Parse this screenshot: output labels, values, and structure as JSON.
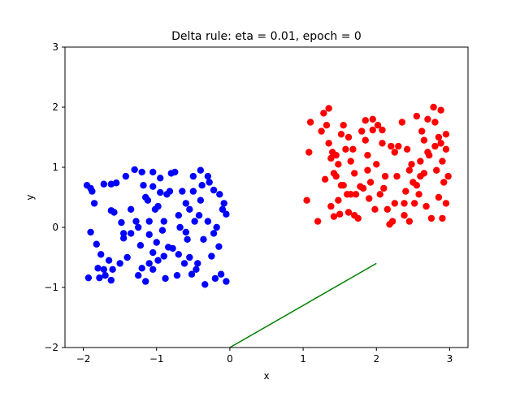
{
  "chart_data": {
    "type": "scatter",
    "title": "Delta rule: eta = 0.01, epoch = 0",
    "xlabel": "x",
    "ylabel": "y",
    "xlim": [
      -2.25,
      3.25
    ],
    "ylim": [
      -2,
      3
    ],
    "xticks": [
      -2,
      -1,
      0,
      1,
      2,
      3
    ],
    "yticks": [
      -2,
      -1,
      0,
      1,
      2,
      3
    ],
    "grid": false,
    "legend": "none",
    "series": [
      {
        "color": "#0000ff",
        "points": [
          [
            -1.95,
            0.7
          ],
          [
            -1.9,
            0.65
          ],
          [
            -1.88,
            0.6
          ],
          [
            -1.85,
            0.4
          ],
          [
            -1.9,
            -0.08
          ],
          [
            -1.93,
            -0.84
          ],
          [
            -1.82,
            -0.28
          ],
          [
            -1.8,
            -0.68
          ],
          [
            -1.78,
            -0.84
          ],
          [
            -1.76,
            -0.45
          ],
          [
            -1.72,
            -0.7
          ],
          [
            -1.7,
            -0.8
          ],
          [
            -1.72,
            0.72
          ],
          [
            -1.62,
            0.72
          ],
          [
            -1.62,
            0.28
          ],
          [
            -1.58,
            0.25
          ],
          [
            -1.6,
            -0.7
          ],
          [
            -1.62,
            -0.88
          ],
          [
            -1.55,
            0.74
          ],
          [
            -1.5,
            -0.6
          ],
          [
            -1.45,
            -0.1
          ],
          [
            -1.45,
            -0.18
          ],
          [
            -1.42,
            0.85
          ],
          [
            -1.4,
            -0.5
          ],
          [
            -1.35,
            -0.1
          ],
          [
            -1.3,
            0.96
          ],
          [
            -1.28,
            0.1
          ],
          [
            -1.25,
            0.0
          ],
          [
            -1.22,
            -0.3
          ],
          [
            -1.2,
            -0.68
          ],
          [
            -1.2,
            0.92
          ],
          [
            -1.18,
            0.7
          ],
          [
            -1.15,
            -0.9
          ],
          [
            -1.15,
            0.5
          ],
          [
            -1.12,
            0.45
          ],
          [
            -1.1,
            -0.6
          ],
          [
            -1.1,
            0.1
          ],
          [
            -1.05,
            0.92
          ],
          [
            -1.05,
            0.68
          ],
          [
            -1.05,
            -0.42
          ],
          [
            -1.05,
            -0.7
          ],
          [
            -1.02,
            0.3
          ],
          [
            -1.0,
            -0.25
          ],
          [
            -0.98,
            0.35
          ],
          [
            -0.98,
            -0.55
          ],
          [
            -0.95,
            0.58
          ],
          [
            -0.92,
            -0.05
          ],
          [
            -0.9,
            -0.48
          ],
          [
            -0.88,
            -0.85
          ],
          [
            -0.86,
            0.55
          ],
          [
            -0.84,
            -0.33
          ],
          [
            -0.82,
            0.6
          ],
          [
            -0.8,
            0.9
          ],
          [
            -0.78,
            -0.35
          ],
          [
            -0.75,
            0.92
          ],
          [
            -0.72,
            -0.8
          ],
          [
            -0.7,
            0.2
          ],
          [
            -0.68,
            0.0
          ],
          [
            -0.65,
            0.6
          ],
          [
            -0.62,
            -0.6
          ],
          [
            -0.6,
            -0.08
          ],
          [
            -0.58,
            -0.2
          ],
          [
            -0.55,
            0.3
          ],
          [
            -0.52,
            -0.78
          ],
          [
            -0.5,
            0.6
          ],
          [
            -0.5,
            0.85
          ],
          [
            -0.48,
            0.1
          ],
          [
            -0.46,
            -0.7
          ],
          [
            -0.44,
            -0.6
          ],
          [
            -0.42,
            0.2
          ],
          [
            -0.4,
            0.95
          ],
          [
            -0.4,
            0.45
          ],
          [
            -0.36,
            -0.2
          ],
          [
            -0.34,
            -0.95
          ],
          [
            -0.3,
            0.85
          ],
          [
            -0.28,
            0.75
          ],
          [
            -0.25,
            -0.48
          ],
          [
            -0.22,
            -0.1
          ],
          [
            -0.2,
            -0.85
          ],
          [
            -0.18,
            0.0
          ],
          [
            -0.15,
            -0.32
          ],
          [
            -0.14,
            0.55
          ],
          [
            -0.12,
            -0.78
          ],
          [
            -0.1,
            0.3
          ],
          [
            -0.08,
            0.4
          ],
          [
            -0.05,
            0.22
          ],
          [
            -0.05,
            -0.9
          ],
          [
            -0.38,
            0.7
          ],
          [
            -0.6,
            0.4
          ],
          [
            -1.35,
            0.3
          ],
          [
            -1.25,
            -0.8
          ],
          [
            -0.9,
            0.1
          ],
          [
            -0.7,
            -0.45
          ],
          [
            -0.3,
            0.1
          ],
          [
            -0.22,
            0.62
          ],
          [
            -1.65,
            -0.55
          ],
          [
            -1.48,
            0.08
          ],
          [
            -0.95,
            0.82
          ],
          [
            -0.55,
            -0.5
          ],
          [
            -1.1,
            -0.12
          ]
        ]
      },
      {
        "color": "#ff0000",
        "points": [
          [
            1.05,
            0.45
          ],
          [
            1.08,
            1.25
          ],
          [
            1.1,
            1.75
          ],
          [
            1.2,
            0.1
          ],
          [
            1.25,
            1.6
          ],
          [
            1.28,
            1.9
          ],
          [
            1.3,
            0.8
          ],
          [
            1.32,
            1.7
          ],
          [
            1.35,
            1.98
          ],
          [
            1.35,
            1.4
          ],
          [
            1.38,
            1.15
          ],
          [
            1.38,
            0.35
          ],
          [
            1.4,
            1.25
          ],
          [
            1.42,
            0.9
          ],
          [
            1.42,
            0.18
          ],
          [
            1.45,
            0.85
          ],
          [
            1.45,
            1.2
          ],
          [
            1.48,
            0.45
          ],
          [
            1.5,
            0.22
          ],
          [
            1.52,
            1.55
          ],
          [
            1.55,
            0.7
          ],
          [
            1.55,
            1.7
          ],
          [
            1.58,
            1.3
          ],
          [
            1.6,
            0.55
          ],
          [
            1.62,
            0.25
          ],
          [
            1.65,
            1.1
          ],
          [
            1.65,
            0.55
          ],
          [
            1.68,
            1.3
          ],
          [
            1.7,
            0.9
          ],
          [
            1.72,
            0.55
          ],
          [
            1.75,
            0.15
          ],
          [
            1.78,
            0.68
          ],
          [
            1.8,
            1.6
          ],
          [
            1.82,
            0.65
          ],
          [
            1.85,
            1.45
          ],
          [
            1.85,
            1.78
          ],
          [
            1.88,
            1.2
          ],
          [
            1.9,
            0.48
          ],
          [
            1.92,
            0.75
          ],
          [
            1.95,
            1.62
          ],
          [
            1.98,
            0.3
          ],
          [
            2.0,
            1.05
          ],
          [
            2.02,
            1.7
          ],
          [
            2.05,
            0.55
          ],
          [
            2.08,
            1.4
          ],
          [
            2.1,
            0.65
          ],
          [
            2.12,
            0.85
          ],
          [
            2.15,
            0.3
          ],
          [
            2.18,
            0.05
          ],
          [
            2.2,
            1.35
          ],
          [
            2.22,
            0.1
          ],
          [
            2.25,
            0.4
          ],
          [
            2.28,
            0.85
          ],
          [
            2.3,
            1.35
          ],
          [
            2.35,
            1.75
          ],
          [
            2.38,
            0.2
          ],
          [
            2.4,
            0.6
          ],
          [
            2.42,
            1.3
          ],
          [
            2.45,
            0.1
          ],
          [
            2.48,
            1.05
          ],
          [
            2.5,
            0.75
          ],
          [
            2.52,
            0.4
          ],
          [
            2.55,
            1.85
          ],
          [
            2.55,
            0.7
          ],
          [
            2.58,
            0.55
          ],
          [
            2.6,
            0.85
          ],
          [
            2.62,
            1.6
          ],
          [
            2.65,
            1.45
          ],
          [
            2.68,
            0.35
          ],
          [
            2.7,
            1.8
          ],
          [
            2.72,
            1.2
          ],
          [
            2.75,
            0.15
          ],
          [
            2.78,
            2.0
          ],
          [
            2.8,
            1.35
          ],
          [
            2.82,
            0.95
          ],
          [
            2.85,
            1.5
          ],
          [
            2.85,
            0.5
          ],
          [
            2.88,
            1.4
          ],
          [
            2.9,
            0.15
          ],
          [
            2.9,
            1.1
          ],
          [
            2.92,
            0.75
          ],
          [
            2.95,
            1.3
          ],
          [
            2.95,
            0.4
          ],
          [
            2.98,
            0.85
          ],
          [
            2.95,
            1.55
          ],
          [
            2.88,
            1.95
          ],
          [
            2.8,
            1.75
          ],
          [
            2.7,
            1.25
          ],
          [
            2.6,
            1.1
          ],
          [
            1.95,
            1.8
          ],
          [
            1.7,
            0.2
          ],
          [
            2.25,
            1.25
          ],
          [
            1.52,
            0.7
          ],
          [
            1.48,
            1.05
          ],
          [
            2.45,
            0.95
          ],
          [
            1.62,
            1.5
          ],
          [
            2.08,
            1.62
          ],
          [
            2.65,
            0.9
          ],
          [
            2.38,
            0.4
          ],
          [
            1.88,
            0.95
          ]
        ]
      }
    ],
    "lines": [
      {
        "color": "#008000",
        "x": [
          0,
          2
        ],
        "y": [
          -2,
          -0.6
        ]
      }
    ]
  }
}
